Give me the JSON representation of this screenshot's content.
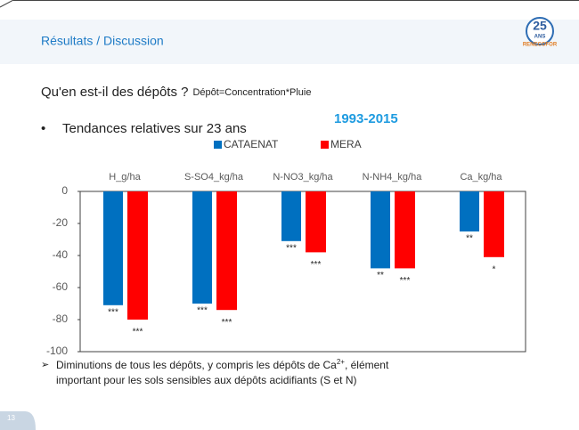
{
  "header": {
    "title": "Résultats / Discussion",
    "logo": [
      "25",
      "ANS",
      "RENECOFOR"
    ]
  },
  "question": "Qu'en est-il des dépôts ?",
  "question_note": "Dépôt=Concentration*Pluie",
  "bullet": "Tendances relatives sur 23 ans",
  "period": "1993-2015",
  "chart_data": {
    "type": "bar",
    "categories": [
      "H_g/ha",
      "S-SO4_kg/ha",
      "N-NO3_kg/ha",
      "N-NH4_kg/ha",
      "Ca_kg/ha"
    ],
    "series": [
      {
        "name": "CATAENAT",
        "color": "#0070c0",
        "values": [
          -71,
          -70,
          -31,
          -48,
          -25
        ],
        "significance": [
          "***",
          "***",
          "***",
          "**",
          "**"
        ]
      },
      {
        "name": "MERA",
        "color": "#ff0000",
        "values": [
          -80,
          -74,
          -38,
          -48,
          -41
        ],
        "significance": [
          "***",
          "***",
          "***",
          "***",
          "*"
        ]
      }
    ],
    "ylim": [
      -100,
      0
    ],
    "yticks": [
      0,
      -20,
      -40,
      -60,
      -80,
      -100
    ],
    "legend": "top"
  },
  "footer": [
    "Diminutions de tous les dépôts, y compris les dépôts de Ca",
    "2+",
    ", élément",
    "important pour les sols sensibles aux dépôts acidifiants (S et N)"
  ],
  "page_number": "13"
}
